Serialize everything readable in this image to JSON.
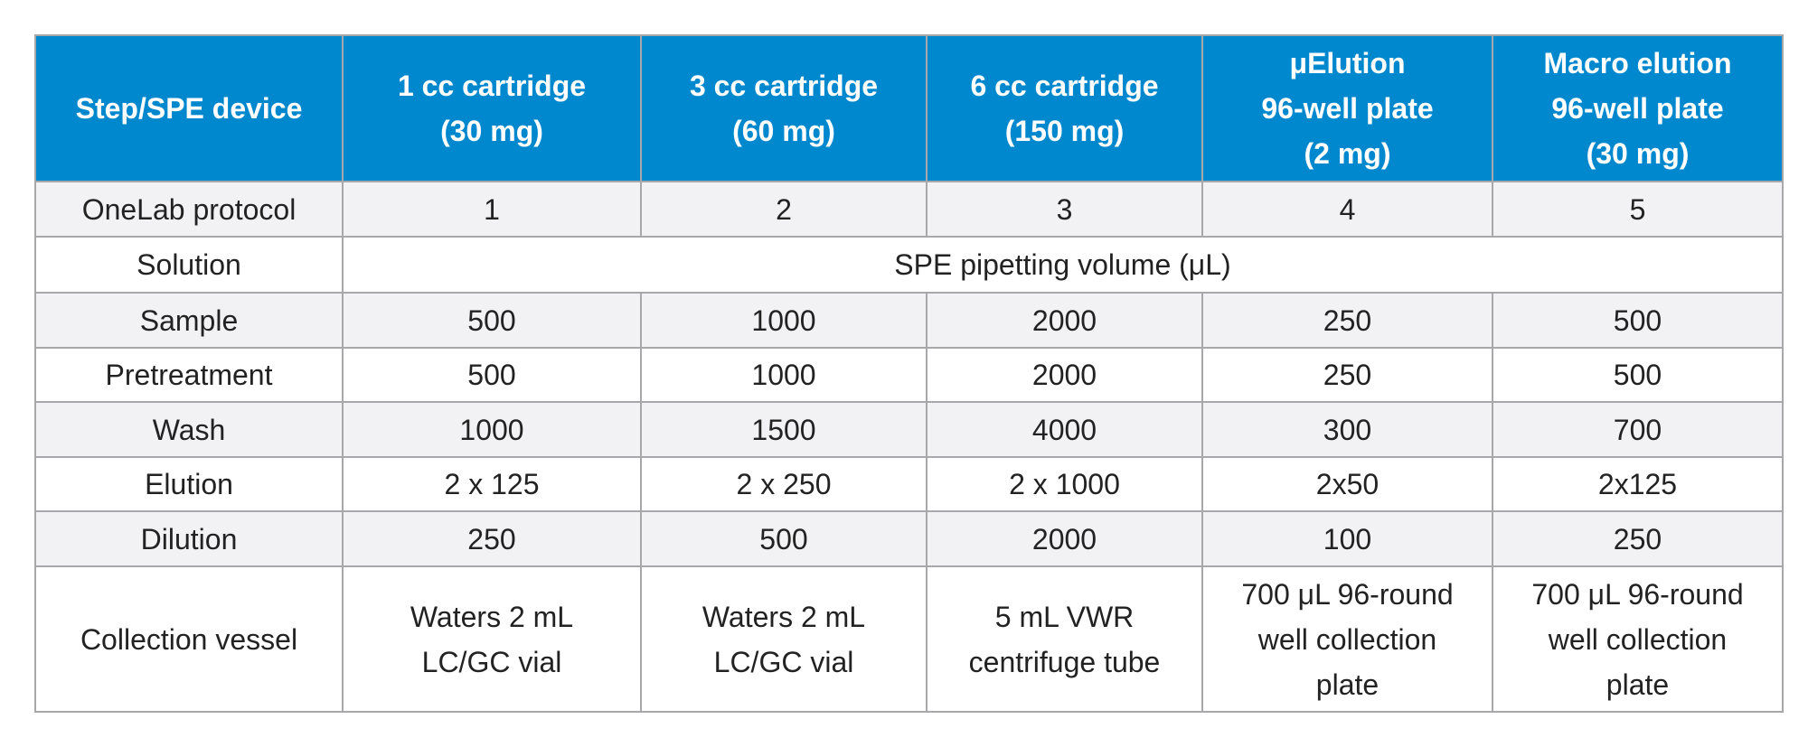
{
  "table": {
    "header": [
      [
        "Step/SPE device"
      ],
      [
        "1 cc cartridge",
        "(30 mg)"
      ],
      [
        "3 cc cartridge",
        "(60 mg)"
      ],
      [
        "6 cc cartridge",
        "(150 mg)"
      ],
      [
        "μElution",
        "96-well plate",
        "(2 mg)"
      ],
      [
        "Macro elution",
        "96-well plate",
        "(30 mg)"
      ]
    ],
    "rows": [
      [
        [
          "OneLab protocol"
        ],
        [
          "1"
        ],
        [
          "2"
        ],
        [
          "3"
        ],
        [
          "4"
        ],
        [
          "5"
        ]
      ],
      [
        [
          "Solution"
        ],
        [
          "SPE pipetting volume (μL)"
        ]
      ],
      [
        [
          "Sample"
        ],
        [
          "500"
        ],
        [
          "1000"
        ],
        [
          "2000"
        ],
        [
          "250"
        ],
        [
          "500"
        ]
      ],
      [
        [
          "Pretreatment"
        ],
        [
          "500"
        ],
        [
          "1000"
        ],
        [
          "2000"
        ],
        [
          "250"
        ],
        [
          "500"
        ]
      ],
      [
        [
          "Wash"
        ],
        [
          "1000"
        ],
        [
          "1500"
        ],
        [
          "4000"
        ],
        [
          "300"
        ],
        [
          "700"
        ]
      ],
      [
        [
          "Elution"
        ],
        [
          "2 x 125"
        ],
        [
          "2 x 250"
        ],
        [
          "2 x 1000"
        ],
        [
          "2x50"
        ],
        [
          "2x125"
        ]
      ],
      [
        [
          "Dilution"
        ],
        [
          "250"
        ],
        [
          "500"
        ],
        [
          "2000"
        ],
        [
          "100"
        ],
        [
          "250"
        ]
      ],
      [
        [
          "Collection vessel"
        ],
        [
          "Waters 2 mL",
          "LC/GC vial"
        ],
        [
          "Waters 2 mL",
          "LC/GC vial"
        ],
        [
          "5 mL VWR",
          "centrifuge tube"
        ],
        [
          "700 μL 96-round",
          "well collection",
          "plate"
        ],
        [
          "700 μL 96-round",
          "well collection",
          "plate"
        ]
      ]
    ]
  }
}
